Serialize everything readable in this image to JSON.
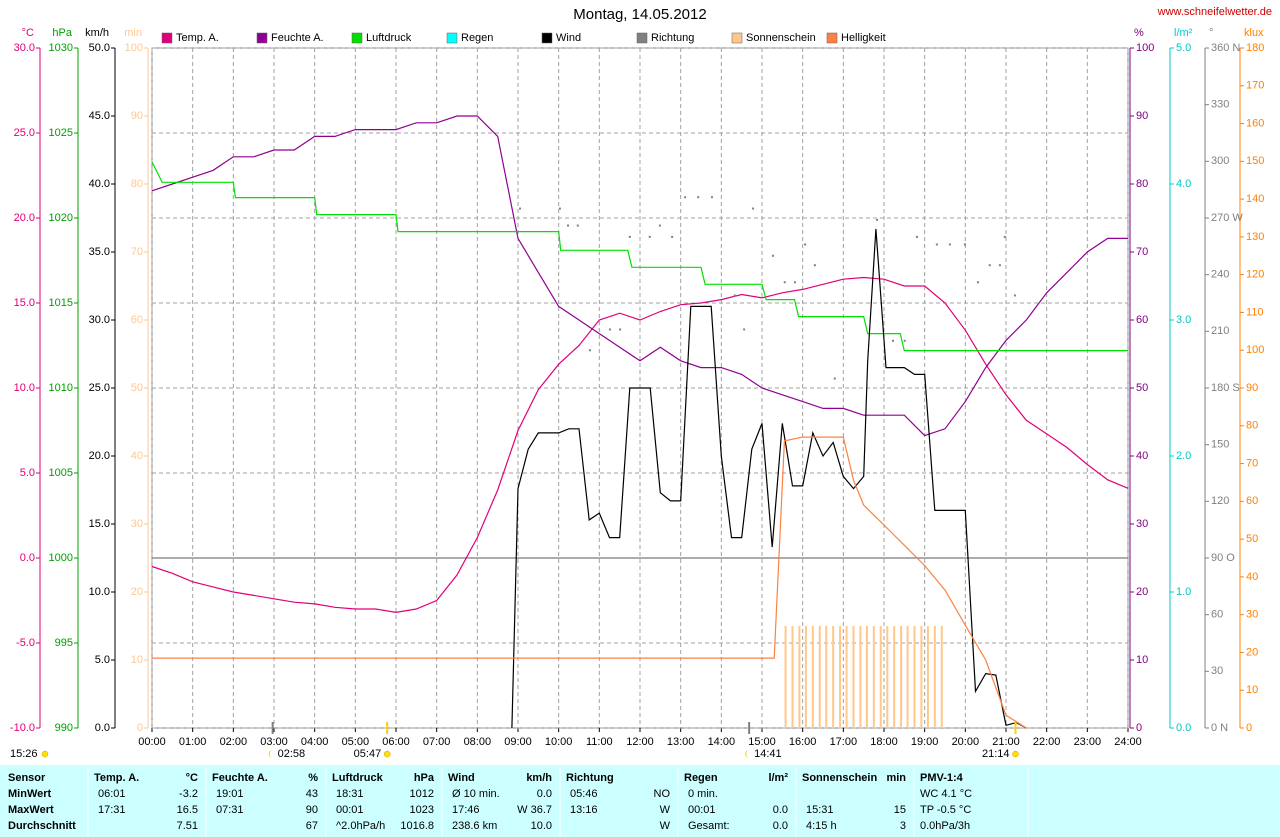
{
  "title": "Montag, 14.05.2012",
  "site": "www.schneifelwetter.de",
  "chart_data": {
    "type": "line",
    "grid": true,
    "xlim": [
      0,
      24
    ],
    "xticks": [
      {
        "value": 0,
        "label": "00:00"
      },
      {
        "value": 1,
        "label": "01:00"
      },
      {
        "value": 2,
        "label": "02:00"
      },
      {
        "value": 3,
        "label": "03:00"
      },
      {
        "value": 4,
        "label": "04:00"
      },
      {
        "value": 5,
        "label": "05:00"
      },
      {
        "value": 6,
        "label": "06:00"
      },
      {
        "value": 7,
        "label": "07:00"
      },
      {
        "value": 8,
        "label": "08:00"
      },
      {
        "value": 9,
        "label": "09:00"
      },
      {
        "value": 10,
        "label": "10:00"
      },
      {
        "value": 11,
        "label": "11:00"
      },
      {
        "value": 12,
        "label": "12:00"
      },
      {
        "value": 13,
        "label": "13:00"
      },
      {
        "value": 14,
        "label": "14:00"
      },
      {
        "value": 15,
        "label": "15:00"
      },
      {
        "value": 16,
        "label": "16:00"
      },
      {
        "value": 17,
        "label": "17:00"
      },
      {
        "value": 18,
        "label": "18:00"
      },
      {
        "value": 19,
        "label": "19:00"
      },
      {
        "value": 20,
        "label": "20:00"
      },
      {
        "value": 21,
        "label": "21:00"
      },
      {
        "value": 22,
        "label": "22:00"
      },
      {
        "value": 23,
        "label": "23:00"
      },
      {
        "value": 24,
        "label": "24:00"
      }
    ],
    "axes": [
      {
        "label": "°C",
        "color": "#e0007a",
        "lim": [
          -10,
          30
        ],
        "ticks": [
          {
            "value": -10,
            "label": "-10.0"
          },
          {
            "value": -5,
            "label": "-5.0"
          },
          {
            "value": 0,
            "label": "0.0"
          },
          {
            "value": 5,
            "label": "5.0"
          },
          {
            "value": 10,
            "label": "10.0"
          },
          {
            "value": 15,
            "label": "15.0"
          },
          {
            "value": 20,
            "label": "20.0"
          },
          {
            "value": 25,
            "label": "25.0"
          },
          {
            "value": 30,
            "label": "30.0"
          }
        ]
      },
      {
        "label": "hPa",
        "color": "#00a000",
        "lim": [
          990,
          1030
        ],
        "ticks": [
          990,
          995,
          1000,
          1005,
          1010,
          1015,
          1020,
          1025,
          1030
        ]
      },
      {
        "label": "km/h",
        "color": "#000000",
        "lim": [
          0,
          50
        ],
        "ticks": [
          {
            "value": 0,
            "label": "0.0"
          },
          {
            "value": 5,
            "label": "5.0"
          },
          {
            "value": 10,
            "label": "10.0"
          },
          {
            "value": 15,
            "label": "15.0"
          },
          {
            "value": 20,
            "label": "20.0"
          },
          {
            "value": 25,
            "label": "25.0"
          },
          {
            "value": 30,
            "label": "30.0"
          },
          {
            "value": 35,
            "label": "35.0"
          },
          {
            "value": 40,
            "label": "40.0"
          },
          {
            "value": 45,
            "label": "45.0"
          },
          {
            "value": 50,
            "label": "50.0"
          }
        ]
      },
      {
        "label": "min",
        "color": "#ffc890",
        "lim": [
          0,
          100
        ],
        "ticks": [
          0,
          10,
          20,
          30,
          40,
          50,
          60,
          70,
          80,
          90,
          100
        ]
      },
      {
        "label": "%",
        "color": "#800080",
        "lim": [
          0,
          100
        ],
        "ticks": [
          0,
          10,
          20,
          30,
          40,
          50,
          60,
          70,
          80,
          90,
          100
        ]
      },
      {
        "label": "l/m²",
        "color": "#00c8c8",
        "lim": [
          0,
          5
        ],
        "ticks": [
          {
            "value": 0,
            "label": "0.0"
          },
          {
            "value": 1,
            "label": "1.0"
          },
          {
            "value": 2,
            "label": "2.0"
          },
          {
            "value": 3,
            "label": "3.0"
          },
          {
            "value": 4,
            "label": "4.0"
          },
          {
            "value": 5,
            "label": "5.0"
          }
        ]
      },
      {
        "label": "°",
        "color": "#808080",
        "lim": [
          0,
          360
        ],
        "ticks": [
          {
            "value": 0,
            "label": "0 N"
          },
          30,
          60,
          {
            "value": 90,
            "label": "90 O"
          },
          120,
          150,
          {
            "value": 180,
            "label": "180 S"
          },
          210,
          240,
          {
            "value": 270,
            "label": "270 W"
          },
          300,
          330,
          {
            "value": 360,
            "label": "360 N"
          }
        ]
      },
      {
        "label": "klux",
        "color": "#ff8000",
        "lim": [
          0,
          180
        ],
        "ticks": [
          0,
          10,
          20,
          30,
          40,
          50,
          60,
          70,
          80,
          90,
          100,
          110,
          120,
          130,
          140,
          150,
          160,
          170,
          180
        ]
      }
    ],
    "series": [
      {
        "name": "Temp. A.",
        "color": "#e0007a",
        "axis": "°C",
        "style": "line",
        "x": [
          0,
          0.5,
          1,
          1.5,
          2,
          2.5,
          3,
          3.5,
          4,
          4.5,
          5,
          5.5,
          6,
          6.5,
          7,
          7.5,
          8,
          8.5,
          9,
          9.5,
          10,
          10.5,
          11,
          11.5,
          12,
          12.5,
          13,
          13.5,
          14,
          14.5,
          15,
          15.5,
          16,
          16.5,
          17,
          17.5,
          18,
          18.5,
          19,
          19.5,
          20,
          20.5,
          21,
          21.5,
          22,
          22.5,
          23,
          23.5,
          24
        ],
        "values": [
          -0.5,
          -0.9,
          -1.4,
          -1.7,
          -2.0,
          -2.2,
          -2.4,
          -2.6,
          -2.7,
          -2.9,
          -3.0,
          -3.0,
          -3.2,
          -3.0,
          -2.5,
          -1.0,
          1.2,
          4.0,
          7.5,
          9.9,
          11.4,
          12.5,
          14.0,
          14.4,
          14.0,
          14.5,
          14.9,
          15.0,
          15.2,
          15.5,
          15.3,
          15.6,
          15.8,
          16.1,
          16.4,
          16.5,
          16.4,
          16.0,
          16.0,
          15.0,
          13.4,
          11.4,
          9.6,
          8.1,
          7.3,
          6.5,
          5.5,
          4.6,
          4.1
        ]
      },
      {
        "name": "Feuchte A.",
        "color": "#900090",
        "axis": "%",
        "style": "line",
        "x": [
          0,
          0.5,
          1,
          1.5,
          2,
          2.5,
          3,
          3.5,
          4,
          4.5,
          5,
          5.5,
          6,
          6.5,
          7,
          7.5,
          8,
          8.5,
          9,
          9.5,
          10,
          10.5,
          11,
          11.5,
          12,
          12.5,
          13,
          13.5,
          14,
          14.5,
          15,
          15.5,
          16,
          16.5,
          17,
          17.5,
          18,
          18.5,
          19,
          19.5,
          20,
          20.5,
          21,
          21.5,
          22,
          22.5,
          23,
          23.5,
          24
        ],
        "values": [
          79,
          80,
          81,
          82,
          84,
          84,
          85,
          85,
          87,
          87,
          88,
          88,
          88,
          89,
          89,
          90,
          90,
          87,
          72,
          67,
          62,
          60,
          58,
          56,
          54,
          56,
          54,
          53,
          53,
          52,
          50,
          49,
          48,
          47,
          47,
          46,
          46,
          46,
          43,
          44,
          48,
          53,
          57,
          60,
          64,
          67,
          70,
          72,
          72
        ]
      },
      {
        "name": "Luftdruck",
        "color": "#00e000",
        "axis": "hPa",
        "style": "line",
        "x": [
          0,
          0.25,
          2,
          2.05,
          4,
          4.05,
          6,
          6.05,
          10,
          10.05,
          11.7,
          11.8,
          13.5,
          13.6,
          15,
          15.1,
          15.8,
          15.9,
          17.5,
          17.6,
          18.4,
          18.5,
          24
        ],
        "values": [
          1023.3,
          1022.1,
          1022.1,
          1021.2,
          1021.2,
          1020.2,
          1020.2,
          1019.2,
          1019.2,
          1018.1,
          1018.1,
          1017.1,
          1017.1,
          1016.1,
          1016.1,
          1015.2,
          1015.2,
          1014.2,
          1014.2,
          1013.2,
          1013.2,
          1012.2,
          1012.2
        ]
      },
      {
        "name": "Regen",
        "color": "#00ffff",
        "axis": "l/m²",
        "style": "line",
        "x": [],
        "values": []
      },
      {
        "name": "Wind",
        "color": "#000000",
        "axis": "km/h",
        "style": "line",
        "x": [
          8.85,
          9,
          9.25,
          9.5,
          10,
          10.25,
          10.5,
          10.75,
          11,
          11.25,
          11.5,
          11.75,
          12.25,
          12.5,
          12.75,
          13,
          13.25,
          13.75,
          14,
          14.25,
          14.5,
          14.75,
          15,
          15.25,
          15.5,
          15.75,
          16,
          16.25,
          16.5,
          16.75,
          17,
          17.25,
          17.5,
          17.6,
          17.8,
          18.05,
          18.5,
          18.75,
          19,
          19.25,
          19.5,
          20,
          20.25,
          20.5,
          20.75,
          21,
          21.25,
          21.5
        ],
        "values": [
          0,
          17.6,
          20.5,
          21.7,
          21.7,
          22.0,
          22.0,
          15.3,
          15.8,
          14.0,
          14.0,
          25.0,
          25.0,
          17.3,
          16.7,
          16.7,
          31.0,
          31.0,
          20.0,
          14.0,
          14.0,
          20.5,
          22.4,
          13.3,
          22.4,
          17.8,
          17.8,
          21.7,
          20.0,
          21.0,
          18.5,
          17.6,
          18.5,
          27.0,
          36.7,
          26.5,
          26.5,
          26.0,
          26.0,
          16.0,
          16.0,
          16.0,
          2.7,
          4.0,
          3.9,
          0.2,
          0.4,
          0.0
        ]
      },
      {
        "name": "Richtung",
        "color": "#808080",
        "axis": "°",
        "style": "dots",
        "x": [
          9.05,
          10.03,
          10.23,
          10.47,
          10.77,
          11.26,
          11.51,
          11.75,
          12.24,
          12.49,
          12.79,
          13.11,
          13.43,
          13.77,
          14.33,
          14.56,
          14.78,
          15.27,
          15.56,
          15.81,
          16.06,
          16.3,
          16.79,
          17.83,
          18.22,
          18.51,
          18.81,
          19.3,
          19.62,
          19.99,
          20.31,
          20.6,
          20.85,
          20.97,
          21.22
        ],
        "values": [
          275,
          275,
          266,
          266,
          200,
          211,
          211,
          260,
          260,
          266,
          260,
          281,
          281,
          281,
          229,
          211,
          275,
          250,
          236,
          236,
          256,
          245,
          185,
          269,
          205,
          205,
          260,
          256,
          256,
          256,
          236,
          245,
          245,
          260,
          229
        ]
      },
      {
        "name": "Sonnenschein",
        "color": "#ffc888",
        "axis": "min",
        "style": "bars",
        "x": [
          15.58,
          15.75,
          15.92,
          16.08,
          16.25,
          16.42,
          16.58,
          16.75,
          16.92,
          17.08,
          17.25,
          17.42,
          17.58,
          17.75,
          17.92,
          18.08,
          18.25,
          18.42,
          18.58,
          18.75,
          18.92,
          19.08,
          19.25,
          19.42
        ],
        "values": [
          15,
          15,
          15,
          15,
          15,
          15,
          15,
          15,
          15,
          15,
          15,
          15,
          15,
          15,
          15,
          15,
          15,
          15,
          15,
          15,
          15,
          15,
          15,
          15
        ]
      },
      {
        "name": "Helligkeit",
        "color": "#ff8040",
        "axis": "klux",
        "style": "line",
        "x": [
          0,
          15.3,
          15.55,
          16,
          17,
          17.25,
          17.5,
          18,
          18.5,
          19,
          19.5,
          20,
          20.5,
          21,
          21.5
        ],
        "values": [
          18.5,
          18.5,
          76,
          77,
          77,
          65.6,
          59,
          53.7,
          48.4,
          43,
          36.5,
          27.2,
          18,
          3.4,
          0
        ]
      }
    ],
    "corner_time": "15:26",
    "astro": [
      {
        "time": "02:58",
        "kind": "moon"
      },
      {
        "time": "05:47",
        "kind": "sun"
      },
      {
        "time": "14:41",
        "kind": "moon"
      },
      {
        "time": "21:14",
        "kind": "sun"
      }
    ]
  },
  "table": {
    "corner": "Sensor",
    "row_labels": [
      "MinWert",
      "MaxWert",
      "Durchschnitt"
    ],
    "groups": [
      {
        "title": "Temp. A.",
        "unit": "°C",
        "cells": [
          [
            "06:01",
            "-3.2"
          ],
          [
            "17:31",
            "16.5"
          ],
          [
            null,
            "7.51"
          ]
        ]
      },
      {
        "title": "Feuchte A.",
        "unit": "%",
        "cells": [
          [
            "19:01",
            "43"
          ],
          [
            "07:31",
            "90"
          ],
          [
            null,
            "67"
          ]
        ]
      },
      {
        "title": "Luftdruck",
        "unit": "hPa",
        "cells": [
          [
            "18:31",
            "1012"
          ],
          [
            "00:01",
            "1023"
          ],
          [
            "^2.0hPa/h",
            "1016.8"
          ]
        ]
      },
      {
        "title": "Wind",
        "unit": "km/h",
        "cells": [
          [
            "Ø 10 min.",
            "0.0"
          ],
          [
            "17:46",
            "W 36.7"
          ],
          [
            "238.6 km",
            "10.0"
          ]
        ]
      },
      {
        "title": "Richtung",
        "unit": null,
        "cells": [
          [
            "05:46",
            "NO"
          ],
          [
            "13:16",
            "W"
          ],
          [
            null,
            "W"
          ]
        ]
      },
      {
        "title": "Regen",
        "unit": "l/m²",
        "cells": [
          [
            "0 min.",
            null
          ],
          [
            "00:01",
            "0.0"
          ],
          [
            "Gesamt:",
            "0.0"
          ]
        ]
      },
      {
        "title": "Sonnenschein",
        "unit": "min",
        "cells": [
          [
            null,
            null
          ],
          [
            "15:31",
            "15"
          ],
          [
            "4:15 h",
            "3"
          ]
        ]
      },
      {
        "title": "PMV-1:4",
        "unit": null,
        "cells": [
          [
            "WC 4.1 °C"
          ],
          [
            "TP -0.5 °C"
          ],
          [
            "0.0hPa/3h"
          ]
        ]
      }
    ]
  }
}
